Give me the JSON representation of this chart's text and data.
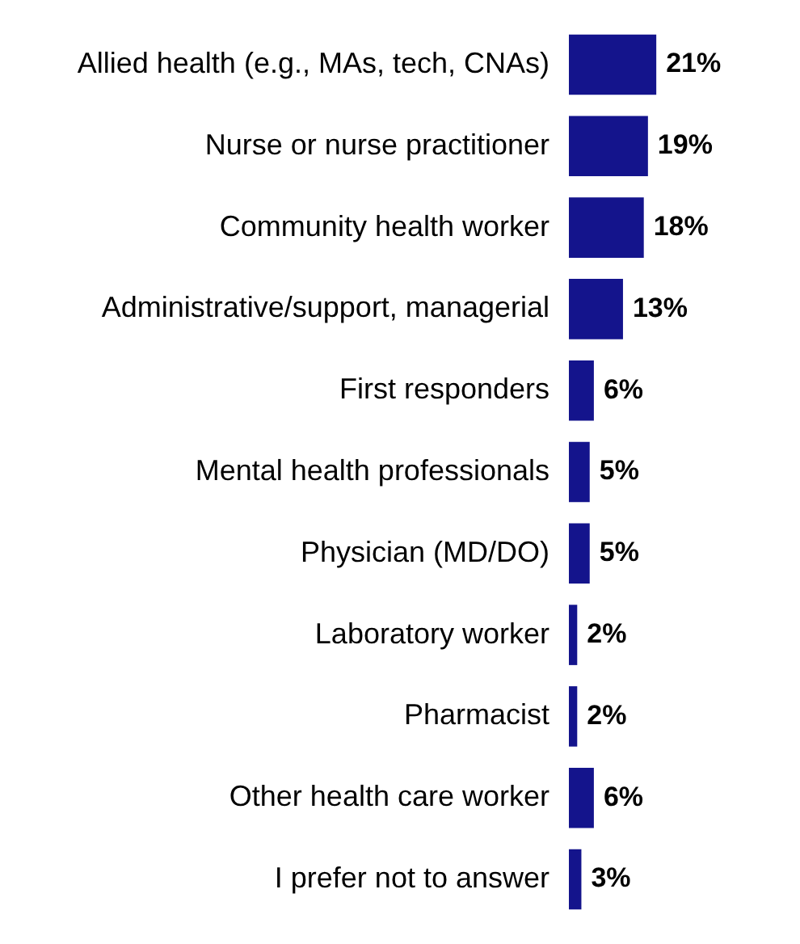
{
  "chart_data": {
    "type": "bar",
    "orientation": "horizontal",
    "categories": [
      "Allied health (e.g., MAs, tech, CNAs)",
      "Nurse or nurse practitioner",
      "Community health worker",
      "Administrative/support, managerial",
      "First responders",
      "Mental health professionals",
      "Physician (MD/DO)",
      "Laboratory worker",
      "Pharmacist",
      "Other health care worker",
      "I prefer not to answer"
    ],
    "values": [
      21,
      19,
      18,
      13,
      6,
      5,
      5,
      2,
      2,
      6,
      3
    ],
    "value_labels": [
      "21%",
      "19%",
      "18%",
      "13%",
      "6%",
      "5%",
      "5%",
      "2%",
      "2%",
      "6%",
      "3%"
    ],
    "color": "#14148c",
    "tick_labels": "y",
    "grid": false,
    "legend": false
  }
}
